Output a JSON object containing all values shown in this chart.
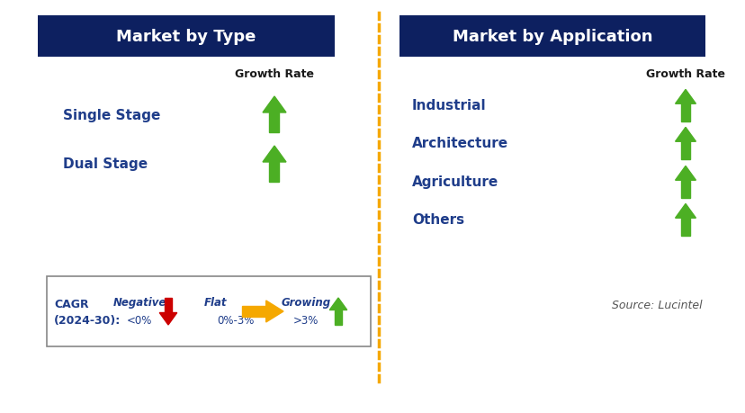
{
  "title_left": "Market by Type",
  "title_right": "Market by Application",
  "header_bg": "#0d2060",
  "header_text_color": "#ffffff",
  "left_items": [
    "Single Stage",
    "Dual Stage"
  ],
  "right_items": [
    "Industrial",
    "Architecture",
    "Agriculture",
    "Others"
  ],
  "item_text_color": "#1f3d8a",
  "growth_rate_label": "Growth Rate",
  "growth_rate_label_color": "#1a1a1a",
  "arrow_up_color": "#4caf24",
  "arrow_down_color": "#cc0000",
  "arrow_flat_color": "#f5a800",
  "legend_neg_label": "Negative",
  "legend_neg_value": "<0%",
  "legend_flat_label": "Flat",
  "legend_flat_value": "0%-3%",
  "legend_grow_label": "Growing",
  "legend_grow_value": ">3%",
  "source_text": "Source: Lucintel",
  "dashed_line_color": "#f5a800",
  "bg_color": "#ffffff",
  "border_color": "#888888"
}
